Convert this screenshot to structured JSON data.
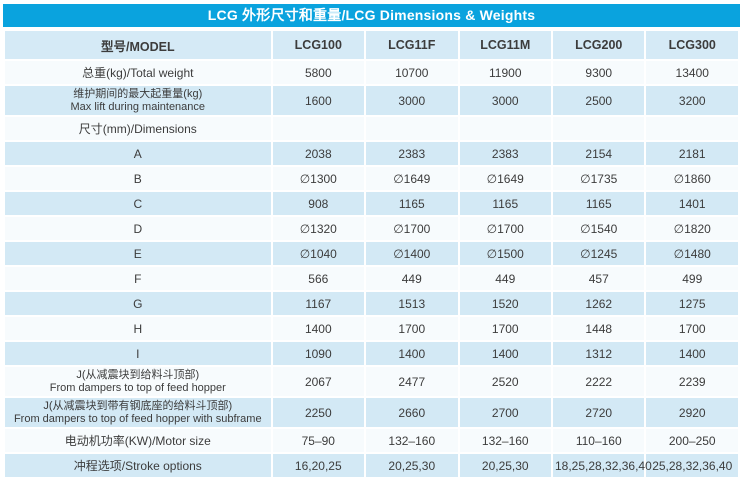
{
  "title": "LCG 外形尺寸和重量/LCG Dimensions & Weights",
  "colors": {
    "title_bg": "#0aa3de",
    "title_text": "#ffffff",
    "header_bg": "#d5eaf6",
    "row_blue": "#d3e9f5",
    "row_white": "#f7fbfd",
    "text": "#3c3c3c"
  },
  "chart_data": {
    "type": "table",
    "title": "LCG 外形尺寸和重量/LCG Dimensions & Weights",
    "columns": [
      "型号/MODEL",
      "LCG100",
      "LCG11F",
      "LCG11M",
      "LCG200",
      "LCG300"
    ],
    "rows": [
      {
        "label": [
          "总重(kg)/Total weight"
        ],
        "values": [
          "5800",
          "10700",
          "11900",
          "9300",
          "13400"
        ]
      },
      {
        "label": [
          "维护期间的最大起重量(kg)",
          "Max lift during maintenance"
        ],
        "values": [
          "1600",
          "3000",
          "3000",
          "2500",
          "3200"
        ]
      },
      {
        "label": [
          "尺寸(mm)/Dimensions"
        ],
        "values": [
          "",
          "",
          "",
          "",
          ""
        ]
      },
      {
        "label": [
          "A"
        ],
        "values": [
          "2038",
          "2383",
          "2383",
          "2154",
          "2181"
        ]
      },
      {
        "label": [
          "B"
        ],
        "values": [
          "∅1300",
          "∅1649",
          "∅1649",
          "∅1735",
          "∅1860"
        ]
      },
      {
        "label": [
          "C"
        ],
        "values": [
          "908",
          "1165",
          "1165",
          "1165",
          "1401"
        ]
      },
      {
        "label": [
          "D"
        ],
        "values": [
          "∅1320",
          "∅1700",
          "∅1700",
          "∅1540",
          "∅1820"
        ]
      },
      {
        "label": [
          "E"
        ],
        "values": [
          "∅1040",
          "∅1400",
          "∅1500",
          "∅1245",
          "∅1480"
        ]
      },
      {
        "label": [
          "F"
        ],
        "values": [
          "566",
          "449",
          "449",
          "457",
          "499"
        ]
      },
      {
        "label": [
          "G"
        ],
        "values": [
          "1167",
          "1513",
          "1520",
          "1262",
          "1275"
        ]
      },
      {
        "label": [
          "H"
        ],
        "values": [
          "1400",
          "1700",
          "1700",
          "1448",
          "1700"
        ]
      },
      {
        "label": [
          "I"
        ],
        "values": [
          "1090",
          "1400",
          "1400",
          "1312",
          "1400"
        ]
      },
      {
        "label": [
          "J(从减震块到给料斗顶部)",
          "From dampers to top of feed hopper"
        ],
        "values": [
          "2067",
          "2477",
          "2520",
          "2222",
          "2239"
        ]
      },
      {
        "label": [
          "J(从减震块到带有钢底座的给料斗顶部)",
          "From dampers to top of feed hopper with subframe"
        ],
        "values": [
          "2250",
          "2660",
          "2700",
          "2720",
          "2920"
        ]
      },
      {
        "label": [
          "电动机功率(KW)/Motor size"
        ],
        "values": [
          "75–90",
          "132–160",
          "132–160",
          "110–160",
          "200–250"
        ]
      },
      {
        "label": [
          "冲程选项/Stroke options"
        ],
        "values": [
          "16,20,25",
          "20,25,30",
          "20,25,30",
          "18,25,28,32,36,40",
          "25,28,32,36,40"
        ]
      }
    ]
  }
}
